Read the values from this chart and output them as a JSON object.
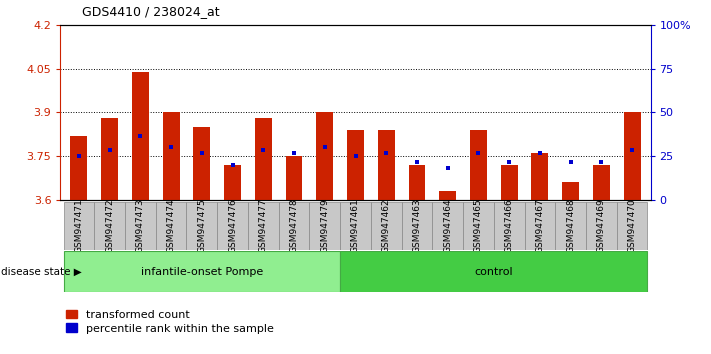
{
  "title": "GDS4410 / 238024_at",
  "samples": [
    "GSM947471",
    "GSM947472",
    "GSM947473",
    "GSM947474",
    "GSM947475",
    "GSM947476",
    "GSM947477",
    "GSM947478",
    "GSM947479",
    "GSM947461",
    "GSM947462",
    "GSM947463",
    "GSM947464",
    "GSM947465",
    "GSM947466",
    "GSM947467",
    "GSM947468",
    "GSM947469",
    "GSM947470"
  ],
  "red_values": [
    3.82,
    3.88,
    4.04,
    3.9,
    3.85,
    3.72,
    3.88,
    3.75,
    3.9,
    3.84,
    3.84,
    3.72,
    3.63,
    3.84,
    3.72,
    3.76,
    3.66,
    3.72,
    3.9
  ],
  "blue_values": [
    3.75,
    3.77,
    3.82,
    3.78,
    3.76,
    3.72,
    3.77,
    3.76,
    3.78,
    3.75,
    3.76,
    3.73,
    3.71,
    3.76,
    3.73,
    3.76,
    3.73,
    3.73,
    3.77
  ],
  "group_labels": [
    "infantile-onset Pompe",
    "control"
  ],
  "group_counts": [
    9,
    10
  ],
  "ylim": [
    3.6,
    4.2
  ],
  "yticks": [
    3.6,
    3.75,
    3.9,
    4.05,
    4.2
  ],
  "ytick_labels": [
    "3.6",
    "3.75",
    "3.9",
    "4.05",
    "4.2"
  ],
  "right_yticks": [
    0,
    25,
    50,
    75,
    100
  ],
  "right_ytick_labels": [
    "0",
    "25",
    "50",
    "75",
    "100%"
  ],
  "bar_color": "#CC2200",
  "dot_color": "#0000CC",
  "bar_width": 0.55,
  "baseline": 3.6,
  "grid_lines": [
    3.75,
    3.9,
    4.05
  ],
  "legend_items": [
    "transformed count",
    "percentile rank within the sample"
  ],
  "disease_state_label": "disease state",
  "group1_color": "#90EE90",
  "group2_color": "#44CC44",
  "cell_color": "#C8C8C8",
  "cell_edge_color": "#888888"
}
